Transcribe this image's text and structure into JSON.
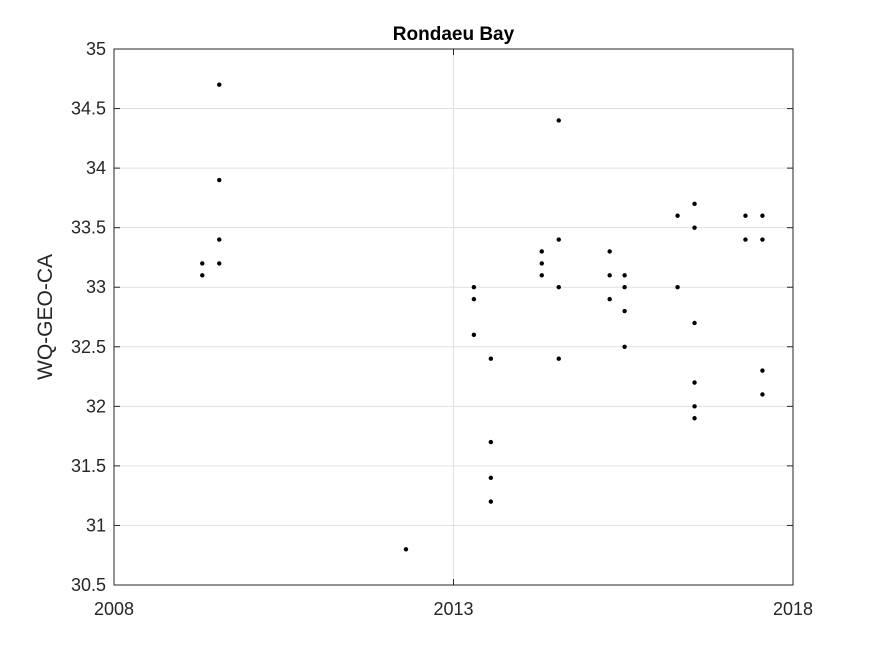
{
  "chart_data": {
    "type": "scatter",
    "title": "Rondaeu Bay",
    "xlabel": "",
    "ylabel": "WQ-GEO-CA",
    "xlim": [
      2008,
      2018
    ],
    "ylim": [
      30.5,
      35
    ],
    "x_ticks": [
      2008,
      2013,
      2018
    ],
    "x_tick_labels": [
      "2008",
      "2013",
      "2018"
    ],
    "y_ticks": [
      30.5,
      31,
      31.5,
      32,
      32.5,
      33,
      33.5,
      34,
      34.5,
      35
    ],
    "y_tick_labels": [
      "30.5",
      "31",
      "31.5",
      "32",
      "32.5",
      "33",
      "33.5",
      "34",
      "34.5",
      "35"
    ],
    "grid": true,
    "legend": "none",
    "marker_color": "#000000",
    "grid_color": "#e0e0e0",
    "series": [
      {
        "points": [
          [
            2009.3,
            33.2
          ],
          [
            2009.3,
            33.1
          ],
          [
            2009.55,
            34.7
          ],
          [
            2009.55,
            33.9
          ],
          [
            2009.55,
            33.4
          ],
          [
            2009.55,
            33.2
          ],
          [
            2012.3,
            30.8
          ],
          [
            2013.3,
            33.0
          ],
          [
            2013.3,
            32.9
          ],
          [
            2013.3,
            32.6
          ],
          [
            2013.55,
            32.4
          ],
          [
            2013.55,
            31.7
          ],
          [
            2013.55,
            31.4
          ],
          [
            2013.55,
            31.2
          ],
          [
            2014.3,
            33.3
          ],
          [
            2014.3,
            33.2
          ],
          [
            2014.3,
            33.1
          ],
          [
            2014.55,
            34.4
          ],
          [
            2014.55,
            33.4
          ],
          [
            2014.55,
            33.0
          ],
          [
            2014.55,
            32.4
          ],
          [
            2015.3,
            33.3
          ],
          [
            2015.3,
            33.1
          ],
          [
            2015.3,
            32.9
          ],
          [
            2015.52,
            33.1
          ],
          [
            2015.52,
            33.0
          ],
          [
            2015.52,
            32.8
          ],
          [
            2015.52,
            32.5
          ],
          [
            2016.3,
            33.6
          ],
          [
            2016.3,
            33.0
          ],
          [
            2016.55,
            33.7
          ],
          [
            2016.55,
            33.5
          ],
          [
            2016.55,
            32.7
          ],
          [
            2016.55,
            32.2
          ],
          [
            2016.55,
            32.0
          ],
          [
            2016.55,
            31.9
          ],
          [
            2017.3,
            33.6
          ],
          [
            2017.3,
            33.4
          ],
          [
            2017.55,
            33.6
          ],
          [
            2017.55,
            33.4
          ],
          [
            2017.55,
            32.3
          ],
          [
            2017.55,
            32.1
          ]
        ]
      }
    ]
  }
}
